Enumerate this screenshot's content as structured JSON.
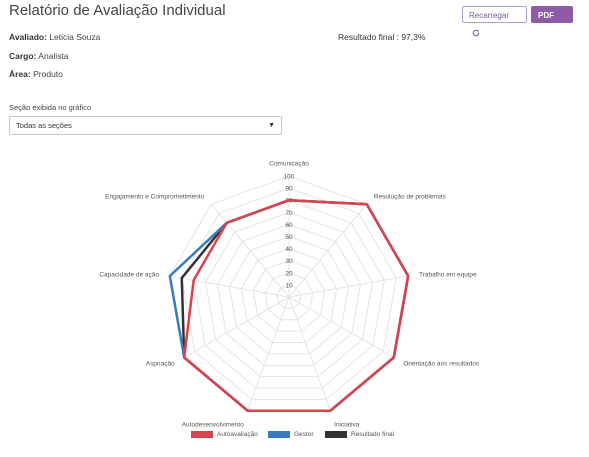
{
  "header": {
    "title": "Relatório de Avaliação Individual",
    "reload_label": "Recarregar",
    "pdf_label": "PDF"
  },
  "info": {
    "evaluated_label": "Avaliado:",
    "evaluated_value": "Leticia Souza",
    "role_label": "Cargo:",
    "role_value": "Analista",
    "area_label": "Área:",
    "area_value": "Produto",
    "final_result_label": "Resultado final :",
    "final_result_value": "97,3%"
  },
  "section_select": {
    "label": "Seção exibida no gráfico",
    "selected": "Todas as seções"
  },
  "colors": {
    "autoavaliacao": "#d9434b",
    "gestor": "#3a7bbf",
    "resultado_final": "#333333",
    "grid": "#e4e4e4",
    "brand": "#8e5aa6"
  },
  "chart_data": {
    "type": "radar",
    "categories": [
      "Comunicação",
      "Resolução de problemas",
      "Trabalho em equipe",
      "Orientação aos resultados",
      "Iniciativa",
      "Autodesenvolvimento",
      "Aspiração",
      "Capacidade de ação",
      "Engajamento e Comprometimento"
    ],
    "rlim": [
      0,
      100
    ],
    "ticks": [
      10,
      20,
      30,
      40,
      50,
      60,
      70,
      80,
      90,
      100
    ],
    "series": [
      {
        "name": "Resultado final",
        "values": [
          80,
          100,
          100,
          100,
          100,
          100,
          100,
          90,
          80
        ]
      },
      {
        "name": "Gestor",
        "values": [
          80,
          100,
          100,
          100,
          100,
          100,
          100,
          100,
          80
        ]
      },
      {
        "name": "Autoavaliação",
        "values": [
          80,
          100,
          100,
          100,
          100,
          100,
          100,
          80,
          80
        ]
      }
    ]
  },
  "legend": {
    "autoavaliacao": "Autoavaliação",
    "gestor": "Gestor",
    "resultado_final": "Resultado final"
  }
}
